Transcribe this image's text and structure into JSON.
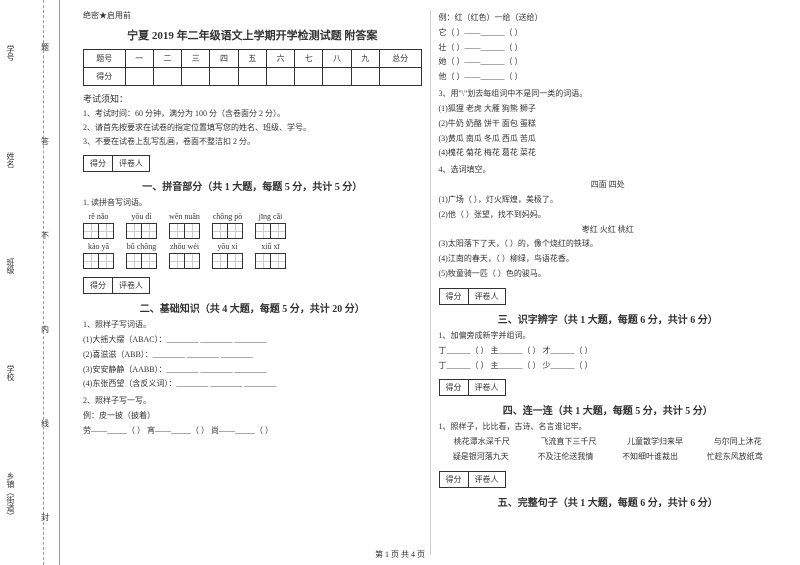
{
  "binding": {
    "labels": [
      "乡镇（街道）",
      "学校",
      "班级",
      "姓名",
      "学号"
    ],
    "markers": [
      "封",
      "线",
      "内",
      "不",
      "答",
      "题"
    ]
  },
  "header": {
    "secret": "绝密★启用前",
    "title": "宁夏 2019 年二年级语文上学期开学检测试题 附答案"
  },
  "scoreTable": {
    "row1": [
      "题号",
      "一",
      "二",
      "三",
      "四",
      "五",
      "六",
      "七",
      "八",
      "九",
      "总分"
    ],
    "row2Label": "得分"
  },
  "notice": {
    "title": "考试须知：",
    "items": [
      "1、考试时间：60 分钟，满分为 100 分（含卷面分 2 分）。",
      "2、请首先按要求在试卷的指定位置填写您的姓名、班级、学号。",
      "3、不要在试卷上乱写乱画，卷面不整洁扣 2 分。"
    ]
  },
  "scorer": {
    "score": "得分",
    "marker": "评卷人"
  },
  "section1": {
    "title": "一、拼音部分（共 1 大题，每题 5 分，共计 5 分）",
    "q1": "1. 读拼音写词语。",
    "pinyinRow1": [
      "rě   nǎo",
      "yōu   dì",
      "wēn   nuǎn",
      "chōng  pò",
      "jīng   cǎi"
    ],
    "pinyinRow2": [
      "kào   yā",
      "bǔ   chōng",
      "zhōu  wéi",
      "yōu   xì",
      "xiū    xī"
    ]
  },
  "section2": {
    "title": "二、基础知识（共 4 大题，每题 5 分，共计 20 分）",
    "q1": "1、照样子写词语。",
    "q1items": [
      "(1)大摇大摆（ABAC）：________   ________   ________",
      "(2)喜滋滋（ABB）：________   ________   ________",
      "(3)安安静静（AABB）：________   ________   ________",
      "(4)东张西望（含反义词）：________   ________   ________"
    ],
    "q2": "2、照样子写一写。",
    "q2ex": "例：皮一披（披着）",
    "q2items": "劳——_____（    ）    宵——_____（    ）    尚——_____（    ）"
  },
  "rightCol": {
    "example": "例：红（红色）一给（送给）",
    "lines": [
      "它（        ）——______（        ）",
      "壮（        ）——______（        ）",
      "她（        ）——______（        ）",
      "他（        ）——______（        ）"
    ],
    "q3": "3、用\"\\\"划去每组词中不是同一类的词语。",
    "q3items": [
      "(1)狐狸    老虎    大雁    狗熊    狮子",
      "(2)牛奶    奶酪    饼干    面包    蛋糕",
      "(3)黄瓜    南瓜    冬瓜    西瓜    苦瓜",
      "(4)槐花    菊花    梅花    葛花    菜花"
    ],
    "q4": "4、选词填空。",
    "q4words": "四面        四处",
    "q4items": [
      "(1)广场（        ），灯火辉煌，美极了。",
      "(2)他（        ）张望，找不到妈妈。",
      "        枣红      火红      桃红",
      "(3)太阳落下了天，（        ）的，像个烧红的铁球。",
      "(4)江南的春天，（        ）柳绿，鸟语花香。",
      "(5)牧童骑一匹（        ）色的骏马。"
    ]
  },
  "section3": {
    "title": "三、识字辨字（共 1 大题，每题 6 分，共计 6 分）",
    "q1": "1、加偏旁成新字并组词。",
    "q1items": [
      "丁______（        ） 主______（        ） 才______（        ）",
      "丁______（        ） 主______（        ） 少______（        ）"
    ]
  },
  "section4": {
    "title": "四、连一连（共 1 大题，每题 5 分，共计 5 分）",
    "q1": "1、照样子，比比看，古诗、名言谁记牢。",
    "row1": [
      "桃花潭水深千尺",
      "飞流直下三千尺",
      "儿童散学归来早",
      "与尔同上沐花"
    ],
    "row2": [
      "疑是银河落九天",
      "不及汪伦送我情",
      "不知细叶谁裁出",
      "忙趁东风放纸鸢"
    ]
  },
  "section5": {
    "title": "五、完整句子（共 1 大题，每题 6 分，共计 6 分）"
  },
  "footer": "第 1 页 共 4 页"
}
